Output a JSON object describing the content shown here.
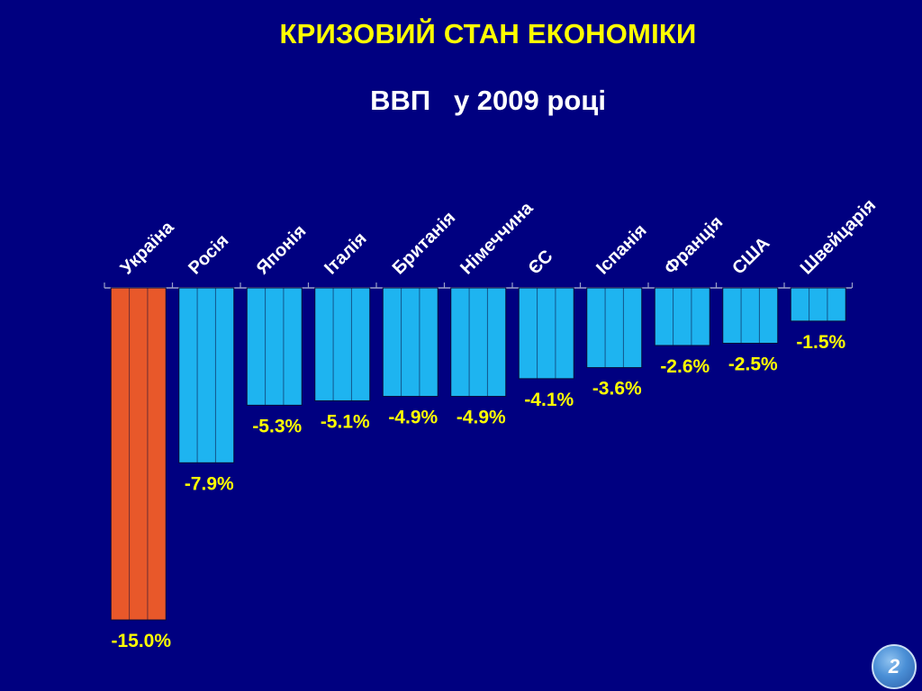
{
  "slide": {
    "title": "КРИЗОВИЙ СТАН ЕКОНОМІКИ",
    "subtitle": "ВВП   у 2009 році",
    "page_number": "2"
  },
  "colors": {
    "background": "#000080",
    "bar_default": "#1EB4F0",
    "bar_highlight": "#E8582A",
    "value_label": "#FFFF00",
    "category_label": "#FFFFFF",
    "title": "#FFFF00"
  },
  "chart_data": {
    "type": "bar",
    "title": "",
    "xlabel": "",
    "ylabel": "",
    "ylim": [
      -15,
      0
    ],
    "grid": false,
    "legend": "none",
    "categories": [
      "Україна",
      "Росія",
      "Японія",
      "Італія",
      "Британія",
      "Німеччина",
      "ЄС",
      "Іспанія",
      "Франція",
      "США",
      "Швейцарія"
    ],
    "series": [
      {
        "values": [
          -15.0,
          -7.9,
          -5.3,
          -5.1,
          -4.9,
          -4.9,
          -4.1,
          -3.6,
          -2.6,
          -2.5,
          -1.5
        ]
      }
    ],
    "labels": [
      "-15.0%",
      "-7.9%",
      "-5.3%",
      "-5.1%",
      "-4.9%",
      "-4.9%",
      "-4.1%",
      "-3.6%",
      "-2.6%",
      "-2.5%",
      "-1.5%"
    ],
    "highlight_category": "Україна"
  }
}
